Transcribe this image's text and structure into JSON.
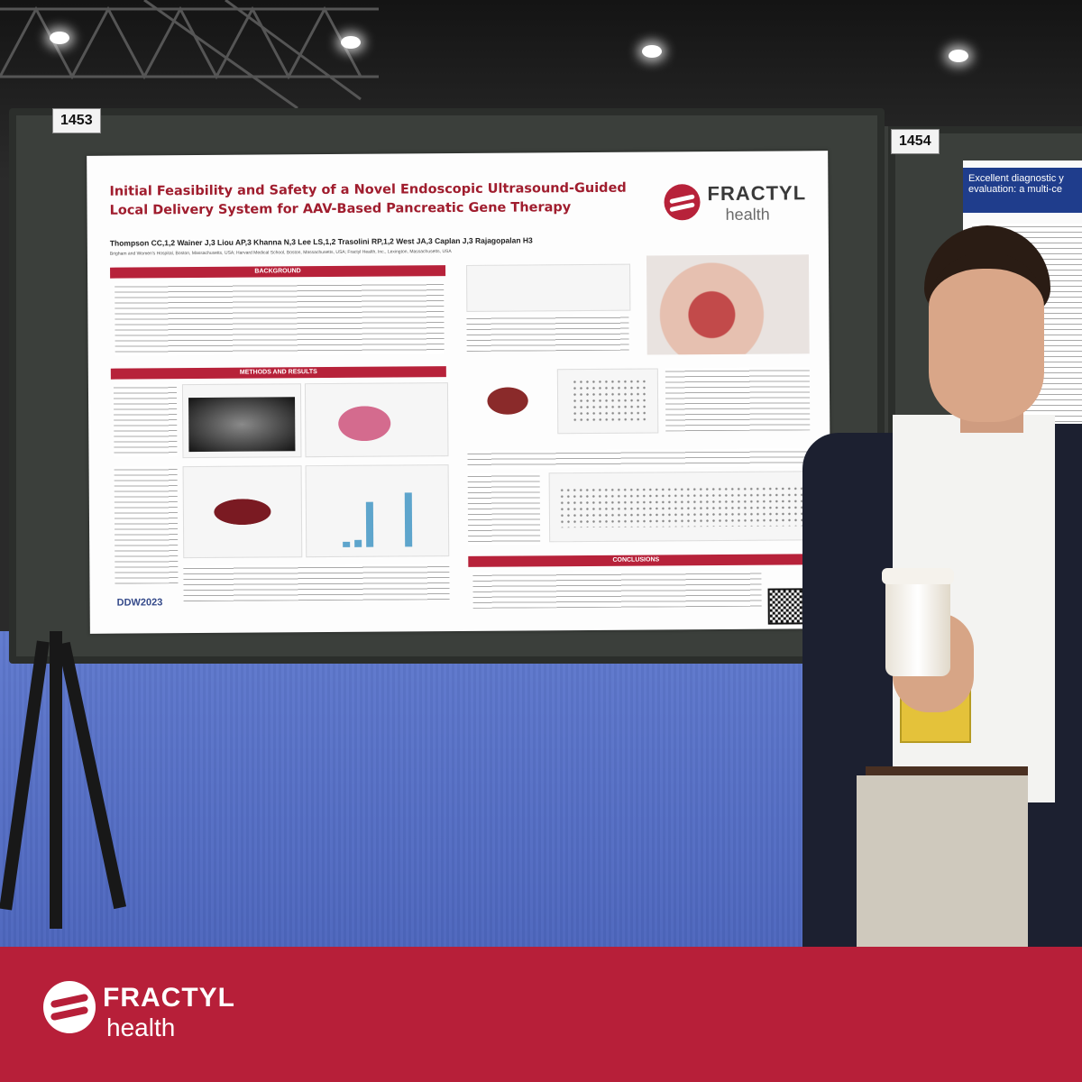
{
  "scene": {
    "board_left_number": "1453",
    "board_right_number": "1454",
    "neighbor_poster_title": "Excellent diagnostic y evaluation: a multi-ce"
  },
  "poster": {
    "title": "Initial Feasibility and Safety of a Novel Endoscopic Ultrasound-Guided Local Delivery System for AAV-Based Pancreatic Gene Therapy",
    "authors": "Thompson CC,1,2 Wainer J,3 Liou AP,3 Khanna N,3 Lee LS,1,2 Trasolini RP,1,2 West JA,3 Caplan J,3 Rajagopalan H3",
    "affiliations": "Brigham and Women's Hospital, Boston, Massachusetts, USA; Harvard Medical School, Boston, Massachusetts, USA; Fractyl Health, Inc., Lexington, Massachusetts, USA",
    "logo_word": "FRACTYL",
    "logo_sub": "health",
    "sections": {
      "background": "BACKGROUND",
      "methods": "METHODS AND RESULTS",
      "conclusions": "CONCLUSIONS"
    },
    "conference": "DDW2023"
  },
  "footer": {
    "brand_word": "FRACTYL",
    "brand_sub": "health",
    "bg_color": "#b71f39"
  }
}
